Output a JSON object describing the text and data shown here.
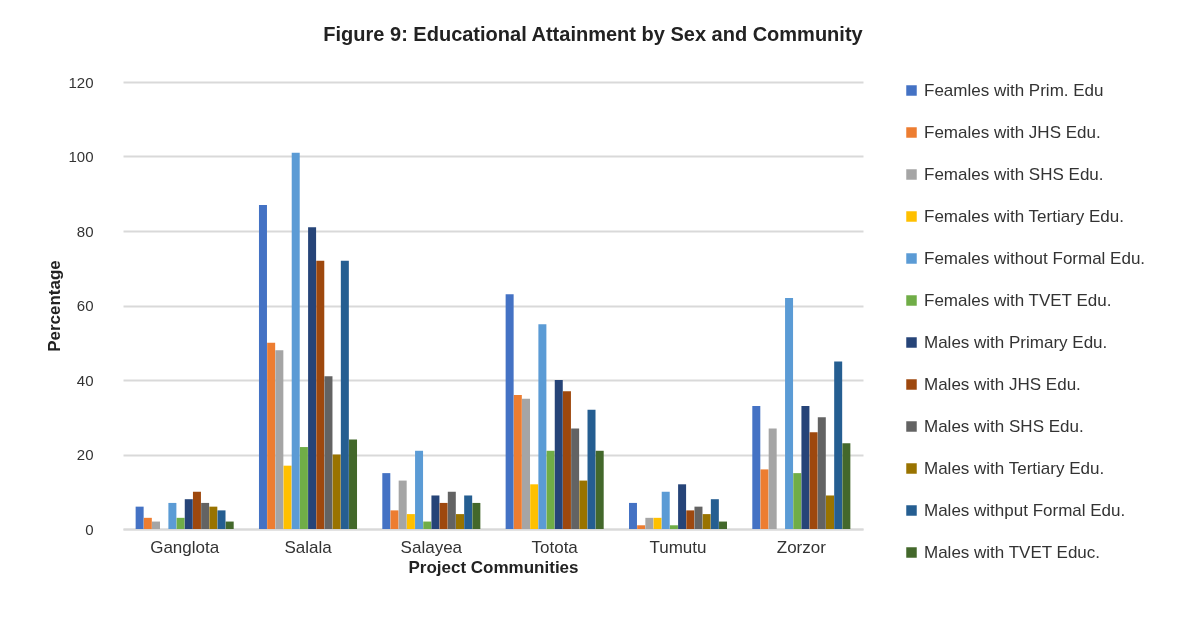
{
  "chart_data": {
    "type": "bar",
    "title": "Figure 9: Educational Attainment by Sex and Community",
    "xlabel": "Project Communities",
    "ylabel": "Percentage",
    "categories": [
      "Ganglota",
      "Salala",
      "Salayea",
      "Totota",
      "Tumutu",
      "Zorzor"
    ],
    "ylim": [
      0,
      120
    ],
    "yticks": [
      0,
      20,
      40,
      60,
      80,
      100,
      120
    ],
    "grid": "y",
    "legend": "right",
    "series": [
      {
        "name": "Feamles with Prim. Edu",
        "color": "#4472c4",
        "values": [
          6,
          87,
          15,
          63,
          7,
          33
        ]
      },
      {
        "name": "Females with JHS Edu.",
        "color": "#ed7d31",
        "values": [
          3,
          50,
          5,
          36,
          1,
          16
        ]
      },
      {
        "name": "Females with SHS Edu.",
        "color": "#a5a5a5",
        "values": [
          2,
          48,
          13,
          35,
          3,
          27
        ]
      },
      {
        "name": "Females with Tertiary Edu.",
        "color": "#ffc000",
        "values": [
          0,
          17,
          4,
          12,
          3,
          0
        ]
      },
      {
        "name": "Females without Formal Edu.",
        "color": "#5b9bd5",
        "values": [
          7,
          101,
          21,
          55,
          10,
          62
        ]
      },
      {
        "name": "Females with TVET Edu.",
        "color": "#70ad47",
        "values": [
          3,
          22,
          2,
          21,
          1,
          15
        ]
      },
      {
        "name": "Males with Primary Edu.",
        "color": "#264478",
        "values": [
          8,
          81,
          9,
          40,
          12,
          33
        ]
      },
      {
        "name": "Males with JHS Edu.",
        "color": "#9e480e",
        "values": [
          10,
          72,
          7,
          37,
          5,
          26
        ]
      },
      {
        "name": "Males with SHS Edu.",
        "color": "#636363",
        "values": [
          7,
          41,
          10,
          27,
          6,
          30
        ]
      },
      {
        "name": "Males with Tertiary Edu.",
        "color": "#997300",
        "values": [
          6,
          20,
          4,
          13,
          4,
          9
        ]
      },
      {
        "name": "Males withput Formal Edu.",
        "color": "#255e91",
        "values": [
          5,
          72,
          9,
          32,
          8,
          45
        ]
      },
      {
        "name": "Males with TVET Educ.",
        "color": "#43682b",
        "values": [
          2,
          24,
          7,
          21,
          2,
          23
        ]
      }
    ]
  }
}
